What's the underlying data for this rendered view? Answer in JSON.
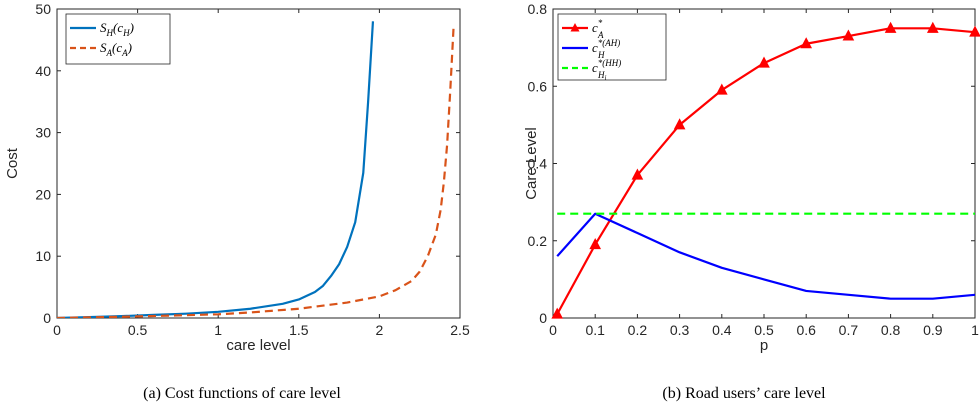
{
  "chart_data": [
    {
      "type": "line",
      "caption": "(a) Cost functions of care level",
      "xlabel": "care level",
      "ylabel": "Cost",
      "xlim": [
        0,
        2.5
      ],
      "ylim": [
        0,
        50
      ],
      "xticks": [
        "0",
        "0.5",
        "1",
        "1.5",
        "2",
        "2.5"
      ],
      "yticks": [
        "0",
        "10",
        "20",
        "30",
        "40",
        "50"
      ],
      "legend_position": "top-left",
      "series": [
        {
          "name": "S_H(c_H)",
          "legend_main": "S",
          "legend_sub": "H",
          "legend_arg": "(c",
          "legend_arg_sub": "H",
          "legend_close": ")",
          "color": "#0072BD",
          "style": "solid",
          "x": [
            0,
            0.2,
            0.4,
            0.6,
            0.8,
            1.0,
            1.2,
            1.4,
            1.5,
            1.6,
            1.65,
            1.7,
            1.75,
            1.8,
            1.85,
            1.9,
            1.93,
            1.96
          ],
          "y": [
            0,
            0.15,
            0.3,
            0.5,
            0.7,
            1.0,
            1.5,
            2.3,
            3.0,
            4.2,
            5.2,
            6.8,
            8.7,
            11.5,
            15.5,
            23.5,
            35,
            48
          ]
        },
        {
          "name": "S_A(c_A)",
          "legend_main": "S",
          "legend_sub": "A",
          "legend_arg": "(c",
          "legend_arg_sub": "A",
          "legend_close": ")",
          "color": "#D95319",
          "style": "dashed",
          "x": [
            0,
            0.4,
            0.8,
            1.0,
            1.2,
            1.5,
            1.8,
            2.0,
            2.1,
            2.2,
            2.25,
            2.3,
            2.35,
            2.38,
            2.4,
            2.42,
            2.44,
            2.46
          ],
          "y": [
            0,
            0.2,
            0.45,
            0.6,
            0.9,
            1.5,
            2.5,
            3.5,
            4.5,
            6.0,
            7.5,
            10.0,
            13.5,
            17.5,
            22,
            28,
            37,
            47
          ]
        }
      ]
    },
    {
      "type": "line",
      "caption": "(b) Road users’ care level",
      "xlabel": "p",
      "ylabel": "Care Level",
      "xlim": [
        0,
        1
      ],
      "ylim": [
        0,
        0.8
      ],
      "xticks": [
        "0",
        "0.1",
        "0.2",
        "0.3",
        "0.4",
        "0.5",
        "0.6",
        "0.7",
        "0.8",
        "0.9",
        "1"
      ],
      "yticks": [
        "0",
        "0.2",
        "0.4",
        "0.6",
        "0.8"
      ],
      "legend_position": "top-left",
      "series": [
        {
          "name": "c_A^*",
          "legend_main": "c",
          "legend_sup": "*",
          "legend_sub": "A",
          "color": "#FF0000",
          "style": "solid",
          "marker": "triangle",
          "x": [
            0.01,
            0.1,
            0.2,
            0.3,
            0.4,
            0.5,
            0.6,
            0.7,
            0.8,
            0.9,
            1.0
          ],
          "y": [
            0.01,
            0.19,
            0.37,
            0.5,
            0.59,
            0.66,
            0.71,
            0.73,
            0.75,
            0.75,
            0.74
          ]
        },
        {
          "name": "c_H^*(AH)",
          "legend_main": "c",
          "legend_sup": "*(AH)",
          "legend_sub": "H",
          "color": "#0000FF",
          "style": "solid",
          "x": [
            0.01,
            0.1,
            0.2,
            0.3,
            0.4,
            0.5,
            0.6,
            0.7,
            0.8,
            0.9,
            1.0
          ],
          "y": [
            0.16,
            0.27,
            0.22,
            0.17,
            0.13,
            0.1,
            0.07,
            0.06,
            0.05,
            0.05,
            0.06
          ]
        },
        {
          "name": "c_Hi^*(HH)",
          "legend_main": "c",
          "legend_sup": "*(HH)",
          "legend_sub": "H",
          "legend_subsub": "i",
          "color": "#00FF00",
          "style": "dashed",
          "x": [
            0.01,
            1.0
          ],
          "y": [
            0.27,
            0.27
          ]
        }
      ]
    }
  ]
}
